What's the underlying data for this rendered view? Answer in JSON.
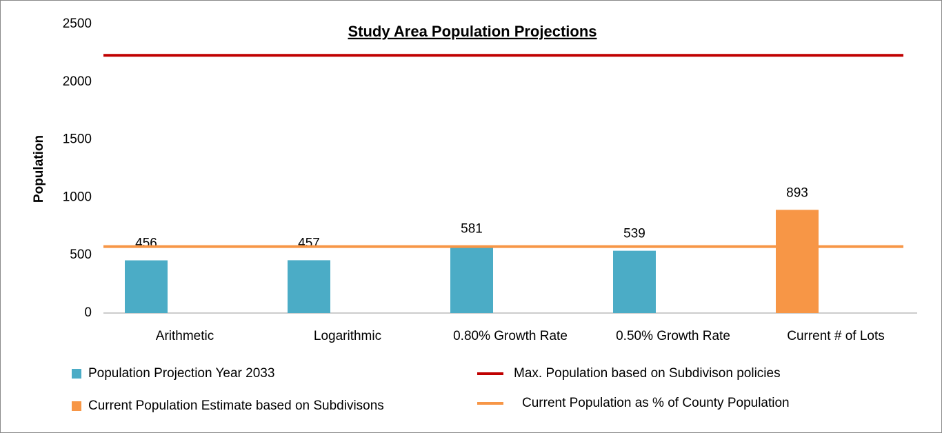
{
  "chart_data": {
    "type": "bar",
    "title": "Study Area Population Projections",
    "y_label": "Population",
    "categories": [
      "Arithmetic",
      "Logarithmic",
      "0.80% Growth Rate",
      "0.50% Growth Rate",
      "Current # of Lots"
    ],
    "series": [
      {
        "name": "Population Projection Year 2033",
        "color": "#4bacc6",
        "values": [
          456,
          457,
          581,
          539,
          null
        ]
      },
      {
        "name": "Current Population Estimate based on Subdivisons",
        "color": "#f79646",
        "values": [
          null,
          null,
          null,
          null,
          893
        ]
      }
    ],
    "reference_lines": [
      {
        "name": "Max. Population based on Subdivison policies",
        "color": "#c00000",
        "value": 2230
      },
      {
        "name": "Current Population as % of County Population",
        "color": "#f79646",
        "value": 575
      }
    ],
    "ylim": [
      0,
      2500
    ],
    "yticks": [
      0,
      500,
      1000,
      1500,
      2000,
      2500
    ],
    "grid": false
  }
}
